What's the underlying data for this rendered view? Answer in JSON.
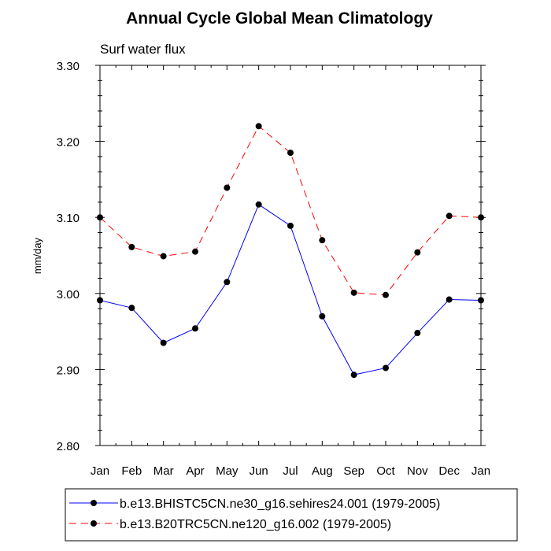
{
  "chart_data": {
    "type": "line",
    "title": "Annual Cycle Global Mean Climatology",
    "subtitle": "Surf water flux",
    "ylabel": "mm/day",
    "xlabel": "",
    "categories": [
      "Jan",
      "Feb",
      "Mar",
      "Apr",
      "May",
      "Jun",
      "Jul",
      "Aug",
      "Sep",
      "Oct",
      "Nov",
      "Dec",
      "Jan"
    ],
    "ylim": [
      2.8,
      3.3
    ],
    "yticks": [
      "3.30",
      "3.20",
      "3.10",
      "3.00",
      "2.90",
      "2.80"
    ],
    "yticks_values": [
      3.3,
      3.2,
      3.1,
      3.0,
      2.9,
      2.8
    ],
    "series": [
      {
        "name": "b.e13.BHISTC5CN.ne30_g16.sehires24.001 (1979-2005)",
        "color": "#0000ff",
        "dash": "solid",
        "values": [
          2.991,
          2.981,
          2.935,
          2.954,
          3.015,
          3.117,
          3.089,
          2.97,
          2.893,
          2.902,
          2.948,
          2.992,
          2.991
        ]
      },
      {
        "name": "b.e13.B20TRC5CN.ne120_g16.002 (1979-2005)",
        "color": "#ff0000",
        "dash": "dashed",
        "values": [
          3.1,
          3.061,
          3.049,
          3.055,
          3.139,
          3.22,
          3.185,
          3.07,
          3.001,
          2.998,
          3.054,
          3.102,
          3.1
        ]
      }
    ],
    "legend_position": "bottom"
  }
}
